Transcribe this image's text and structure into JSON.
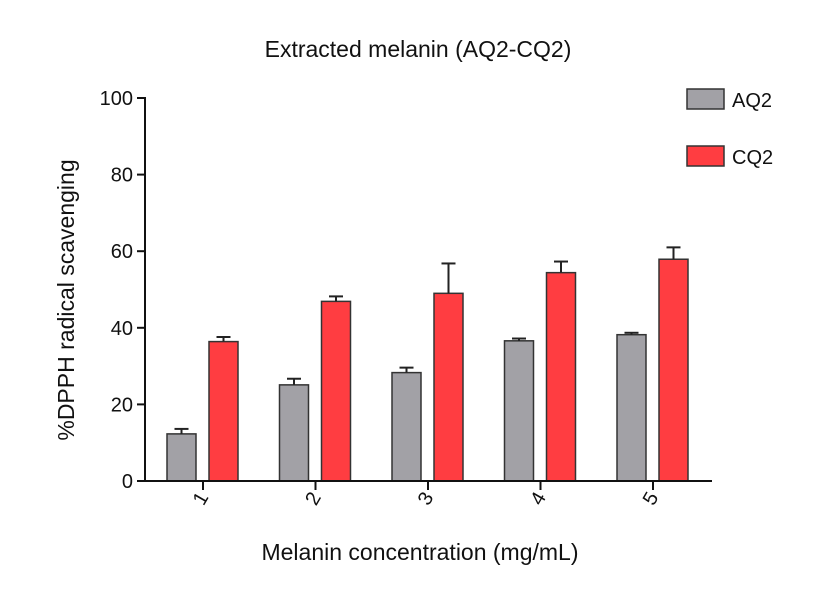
{
  "chart_data": {
    "type": "bar",
    "title": "Extracted melanin (AQ2-CQ2)",
    "xlabel": "Melanin concentration (mg/mL)",
    "ylabel": "%DPPH radical scavenging",
    "categories": [
      "1",
      "2",
      "3",
      "4",
      "5"
    ],
    "ylim": [
      0,
      100
    ],
    "yticks": [
      0,
      20,
      40,
      60,
      80,
      100
    ],
    "ytick_labels": [
      "0",
      "20",
      "40",
      "60",
      "80",
      "100"
    ],
    "grid": false,
    "legend_position": "top-right",
    "error_bars": "upper only",
    "series": [
      {
        "name": "AQ2",
        "color": "#A2A1A6",
        "values": [
          12.3,
          25.1,
          28.3,
          36.6,
          38.2
        ],
        "errors": [
          1.3,
          1.6,
          1.3,
          0.6,
          0.5
        ]
      },
      {
        "name": "CQ2",
        "color": "#FF3D41",
        "values": [
          36.4,
          46.9,
          49.0,
          54.4,
          57.9
        ],
        "errors": [
          1.2,
          1.3,
          7.8,
          2.9,
          3.1
        ]
      }
    ]
  }
}
